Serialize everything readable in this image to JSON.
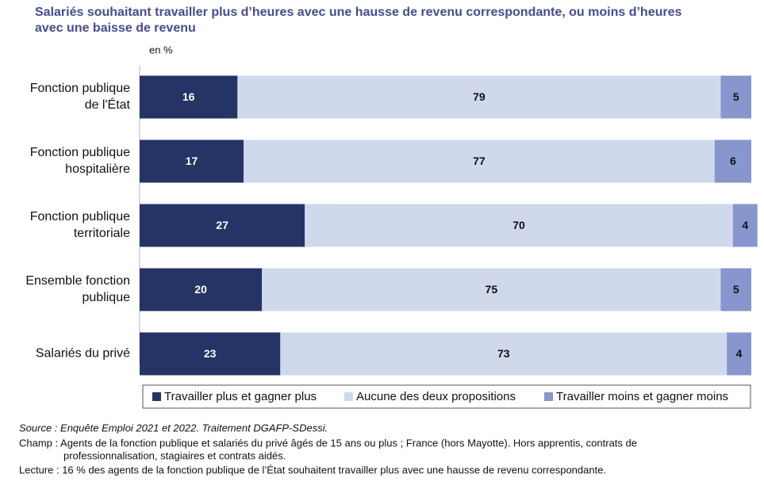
{
  "chart_data": {
    "type": "stacked-bar-horizontal",
    "title": [
      "Salariés souhaitant travailler plus d’heures avec une hausse de revenu correspondante, ou moins d’heures",
      "avec une baisse de revenu"
    ],
    "unit_label": "en %",
    "categories": [
      [
        "Fonction publique",
        "de l'État"
      ],
      [
        "Fonction publique",
        "hospitalière"
      ],
      [
        "Fonction publique",
        "territoriale"
      ],
      [
        "Ensemble fonction",
        "publique"
      ],
      [
        "Salariés du privé"
      ]
    ],
    "series": [
      {
        "name": "Travailler plus et gagner plus",
        "color": "#253465",
        "label_color": "#ffffff",
        "values": [
          16,
          17,
          27,
          20,
          23
        ]
      },
      {
        "name": "Aucune des deux propositions",
        "color": "#d0d8ec",
        "label_color": "#111111",
        "values": [
          79,
          77,
          70,
          75,
          73
        ]
      },
      {
        "name": "Travailler moins et gagner moins",
        "color": "#8796cc",
        "label_color": "#111111",
        "values": [
          5,
          6,
          4,
          5,
          4
        ]
      }
    ],
    "xlim": [
      0,
      100
    ],
    "notes": {
      "source": "Source : Enquête Emploi 2021 et 2022. Traitement DGAFP-SDessi.",
      "champ": [
        "Champ : Agents de la fonction publique et salariés du privé âgés de 15 ans ou plus ; France (hors Mayotte). Hors apprentis, contrats de",
        "professionnalisation, stagiaires et contrats aidés."
      ],
      "lecture": "Lecture : 16 % des agents de la fonction publique de l’État souhaitent travailler plus avec une hausse de revenu correspondante."
    }
  }
}
